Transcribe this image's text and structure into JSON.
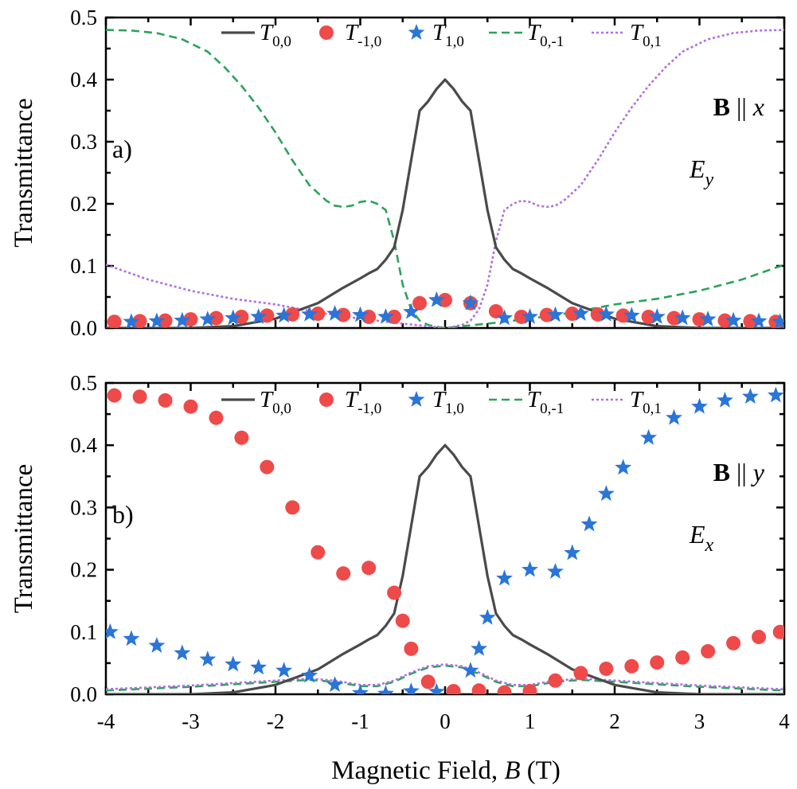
{
  "colors": {
    "T00": "#4a4a4a",
    "Tm10": "#ee4a4a",
    "T10": "#2a75d8",
    "T0m1": "#2aa35a",
    "T01": "#b16ee0"
  },
  "xlabel_main": "Magnetic Field, ",
  "xlabel_var": "B",
  "xlabel_unit": " (T)",
  "chart_data": [
    {
      "type": "line",
      "panel": "a",
      "panel_label": "a)",
      "field_label_bold": "B",
      "field_label_sep": " || ",
      "field_label_axis": "x",
      "pol_label_main": "E",
      "pol_label_sub": "y",
      "ylabel": "Transmittance",
      "xlabel": "Magnetic Field, B (T)",
      "xlim": [
        -4,
        4
      ],
      "ylim": [
        0,
        0.5
      ],
      "xticks": [
        "-4",
        "-3",
        "-2",
        "-1",
        "0",
        "1",
        "2",
        "3",
        "4"
      ],
      "yticks": [
        "0.0",
        "0.1",
        "0.2",
        "0.3",
        "0.4",
        "0.5"
      ],
      "legend": [
        {
          "key": "T00",
          "main": "T",
          "sub": "0,0",
          "style": "solid"
        },
        {
          "key": "Tm10",
          "main": "T",
          "sub": "-1,0",
          "style": "circle"
        },
        {
          "key": "T10",
          "main": "T",
          "sub": "1,0",
          "style": "star"
        },
        {
          "key": "T0m1",
          "main": "T",
          "sub": "0,-1",
          "style": "dash"
        },
        {
          "key": "T01",
          "main": "T",
          "sub": "0,1",
          "style": "dot"
        }
      ],
      "series": [
        {
          "key": "T00",
          "name": "T0,0",
          "style": "solid",
          "x": [
            -4.0,
            -3.5,
            -3.0,
            -2.5,
            -2.0,
            -1.5,
            -1.2,
            -1.0,
            -0.9,
            -0.8,
            -0.7,
            -0.6,
            -0.5,
            -0.4,
            -0.3,
            -0.2,
            -0.1,
            0.0,
            0.1,
            0.2,
            0.3,
            0.4,
            0.5,
            0.6,
            0.7,
            0.8,
            0.9,
            1.0,
            1.2,
            1.5,
            2.0,
            2.5,
            3.0,
            3.5,
            4.0
          ],
          "y": [
            0.0,
            0.0,
            0.0,
            0.003,
            0.015,
            0.04,
            0.065,
            0.08,
            0.088,
            0.095,
            0.11,
            0.13,
            0.19,
            0.27,
            0.35,
            0.365,
            0.385,
            0.4,
            0.385,
            0.365,
            0.35,
            0.27,
            0.19,
            0.13,
            0.11,
            0.095,
            0.088,
            0.08,
            0.065,
            0.04,
            0.015,
            0.003,
            0.0,
            0.0,
            0.0
          ]
        },
        {
          "key": "Tm10",
          "name": "T-1,0",
          "style": "circle",
          "x": [
            -3.9,
            -3.6,
            -3.3,
            -3.0,
            -2.7,
            -2.4,
            -2.1,
            -1.8,
            -1.5,
            -1.2,
            -0.9,
            -0.6,
            -0.3,
            0.0,
            0.3,
            0.6,
            0.9,
            1.2,
            1.5,
            1.8,
            2.1,
            2.4,
            2.7,
            3.0,
            3.3,
            3.6,
            3.9
          ],
          "y": [
            0.01,
            0.011,
            0.012,
            0.014,
            0.016,
            0.018,
            0.02,
            0.022,
            0.023,
            0.021,
            0.018,
            0.018,
            0.04,
            0.045,
            0.04,
            0.027,
            0.018,
            0.021,
            0.023,
            0.022,
            0.02,
            0.018,
            0.016,
            0.014,
            0.012,
            0.011,
            0.01
          ]
        },
        {
          "key": "T10",
          "name": "T1,0",
          "style": "star",
          "x": [
            -3.7,
            -3.4,
            -3.1,
            -2.8,
            -2.5,
            -2.2,
            -1.9,
            -1.6,
            -1.3,
            -1.0,
            -0.7,
            -0.4,
            -0.1,
            0.3,
            0.7,
            1.0,
            1.3,
            1.6,
            1.9,
            2.2,
            2.5,
            2.8,
            3.1,
            3.4,
            3.7,
            3.95
          ],
          "y": [
            0.01,
            0.011,
            0.012,
            0.014,
            0.016,
            0.018,
            0.02,
            0.022,
            0.023,
            0.021,
            0.018,
            0.026,
            0.045,
            0.04,
            0.016,
            0.018,
            0.021,
            0.023,
            0.022,
            0.02,
            0.018,
            0.016,
            0.014,
            0.012,
            0.011,
            0.01
          ]
        },
        {
          "key": "T0m1",
          "name": "T0,-1",
          "style": "dash",
          "x": [
            -4.0,
            -3.7,
            -3.4,
            -3.1,
            -2.8,
            -2.6,
            -2.4,
            -2.2,
            -2.0,
            -1.8,
            -1.6,
            -1.4,
            -1.3,
            -1.2,
            -1.1,
            -1.0,
            -0.9,
            -0.8,
            -0.7,
            -0.6,
            -0.5,
            -0.4,
            -0.3,
            -0.2,
            -0.1,
            0.0,
            0.2,
            0.5,
            1.0,
            1.5,
            2.0,
            2.5,
            3.0,
            3.5,
            4.0
          ],
          "y": [
            0.48,
            0.479,
            0.475,
            0.465,
            0.445,
            0.42,
            0.39,
            0.355,
            0.315,
            0.27,
            0.23,
            0.205,
            0.197,
            0.195,
            0.197,
            0.203,
            0.205,
            0.2,
            0.19,
            0.14,
            0.07,
            0.03,
            0.012,
            0.005,
            0.002,
            0.0,
            0.003,
            0.007,
            0.015,
            0.025,
            0.038,
            0.047,
            0.06,
            0.078,
            0.102
          ]
        },
        {
          "key": "T01",
          "name": "T0,1",
          "style": "dot",
          "x": [
            -4.0,
            -3.5,
            -3.0,
            -2.5,
            -2.0,
            -1.5,
            -1.0,
            -0.5,
            -0.2,
            0.0,
            0.1,
            0.2,
            0.3,
            0.4,
            0.5,
            0.6,
            0.7,
            0.8,
            0.9,
            1.0,
            1.1,
            1.2,
            1.3,
            1.4,
            1.6,
            1.8,
            2.0,
            2.2,
            2.4,
            2.6,
            2.8,
            3.1,
            3.4,
            3.7,
            4.0
          ],
          "y": [
            0.102,
            0.078,
            0.06,
            0.047,
            0.038,
            0.025,
            0.015,
            0.007,
            0.003,
            0.0,
            0.002,
            0.005,
            0.012,
            0.03,
            0.07,
            0.14,
            0.19,
            0.2,
            0.205,
            0.203,
            0.197,
            0.195,
            0.197,
            0.205,
            0.23,
            0.27,
            0.315,
            0.355,
            0.39,
            0.42,
            0.445,
            0.465,
            0.475,
            0.479,
            0.48
          ]
        }
      ]
    },
    {
      "type": "line",
      "panel": "b",
      "panel_label": "b)",
      "field_label_bold": "B",
      "field_label_sep": " || ",
      "field_label_axis": "y",
      "pol_label_main": "E",
      "pol_label_sub": "x",
      "ylabel": "Transmittance",
      "xlabel": "Magnetic Field, B (T)",
      "xlim": [
        -4,
        4
      ],
      "ylim": [
        0,
        0.5
      ],
      "xticks": [
        "-4",
        "-3",
        "-2",
        "-1",
        "0",
        "1",
        "2",
        "3",
        "4"
      ],
      "yticks": [
        "0.0",
        "0.1",
        "0.2",
        "0.3",
        "0.4",
        "0.5"
      ],
      "legend": [
        {
          "key": "T00",
          "main": "T",
          "sub": "0,0",
          "style": "solid"
        },
        {
          "key": "Tm10",
          "main": "T",
          "sub": "-1,0",
          "style": "circle"
        },
        {
          "key": "T10",
          "main": "T",
          "sub": "1,0",
          "style": "star"
        },
        {
          "key": "T0m1",
          "main": "T",
          "sub": "0,-1",
          "style": "dash"
        },
        {
          "key": "T01",
          "main": "T",
          "sub": "0,1",
          "style": "dot"
        }
      ],
      "series": [
        {
          "key": "T00",
          "name": "T0,0",
          "style": "solid",
          "x": [
            -4.0,
            -3.5,
            -3.0,
            -2.5,
            -2.0,
            -1.5,
            -1.2,
            -1.0,
            -0.9,
            -0.8,
            -0.7,
            -0.6,
            -0.5,
            -0.4,
            -0.3,
            -0.2,
            -0.1,
            0.0,
            0.1,
            0.2,
            0.3,
            0.4,
            0.5,
            0.6,
            0.7,
            0.8,
            0.9,
            1.0,
            1.2,
            1.5,
            2.0,
            2.5,
            3.0,
            3.5,
            4.0
          ],
          "y": [
            0.0,
            0.0,
            0.0,
            0.003,
            0.015,
            0.04,
            0.065,
            0.08,
            0.088,
            0.095,
            0.11,
            0.13,
            0.19,
            0.27,
            0.35,
            0.365,
            0.385,
            0.4,
            0.385,
            0.365,
            0.35,
            0.27,
            0.19,
            0.13,
            0.11,
            0.095,
            0.088,
            0.08,
            0.065,
            0.04,
            0.015,
            0.003,
            0.0,
            0.0,
            0.0
          ]
        },
        {
          "key": "Tm10",
          "name": "T-1,0",
          "style": "circle",
          "x": [
            -3.9,
            -3.6,
            -3.3,
            -3.0,
            -2.7,
            -2.4,
            -2.1,
            -1.8,
            -1.5,
            -1.2,
            -0.9,
            -0.6,
            -0.5,
            -0.4,
            -0.2,
            0.1,
            0.4,
            0.7,
            1.0,
            1.3,
            1.6,
            1.9,
            2.2,
            2.5,
            2.8,
            3.1,
            3.4,
            3.7,
            3.95
          ],
          "y": [
            0.48,
            0.478,
            0.472,
            0.462,
            0.444,
            0.412,
            0.365,
            0.3,
            0.228,
            0.194,
            0.203,
            0.163,
            0.118,
            0.073,
            0.02,
            0.005,
            0.006,
            0.003,
            0.005,
            0.022,
            0.034,
            0.041,
            0.045,
            0.051,
            0.059,
            0.069,
            0.082,
            0.092,
            0.1
          ]
        },
        {
          "key": "T10",
          "name": "T1,0",
          "style": "star",
          "x": [
            -3.95,
            -3.7,
            -3.4,
            -3.1,
            -2.8,
            -2.5,
            -2.2,
            -1.9,
            -1.6,
            -1.3,
            -1.0,
            -0.7,
            -0.4,
            -0.1,
            0.3,
            0.4,
            0.5,
            0.7,
            1.0,
            1.3,
            1.5,
            1.7,
            1.9,
            2.1,
            2.4,
            2.7,
            3.0,
            3.3,
            3.6,
            3.9
          ],
          "y": [
            0.1,
            0.089,
            0.078,
            0.066,
            0.056,
            0.048,
            0.043,
            0.038,
            0.03,
            0.015,
            0.002,
            0.001,
            0.005,
            0.004,
            0.038,
            0.073,
            0.123,
            0.186,
            0.2,
            0.197,
            0.227,
            0.273,
            0.322,
            0.364,
            0.412,
            0.444,
            0.462,
            0.472,
            0.478,
            0.48
          ]
        },
        {
          "key": "T0m1",
          "name": "T0,-1",
          "style": "dash",
          "x": [
            -4.0,
            -3.5,
            -3.0,
            -2.5,
            -2.0,
            -1.6,
            -1.3,
            -1.0,
            -0.8,
            -0.6,
            -0.4,
            -0.2,
            0.0,
            0.2,
            0.4,
            0.6,
            0.8,
            1.0,
            1.3,
            1.6,
            2.0,
            2.5,
            3.0,
            3.5,
            4.0
          ],
          "y": [
            0.006,
            0.009,
            0.012,
            0.016,
            0.02,
            0.023,
            0.02,
            0.013,
            0.013,
            0.02,
            0.033,
            0.043,
            0.046,
            0.043,
            0.033,
            0.02,
            0.013,
            0.013,
            0.02,
            0.023,
            0.02,
            0.016,
            0.012,
            0.009,
            0.006
          ]
        },
        {
          "key": "T01",
          "name": "T0,1",
          "style": "dot",
          "x": [
            -4.0,
            -3.5,
            -3.0,
            -2.5,
            -2.0,
            -1.6,
            -1.3,
            -1.0,
            -0.8,
            -0.6,
            -0.4,
            -0.2,
            0.0,
            0.2,
            0.4,
            0.6,
            0.8,
            1.0,
            1.3,
            1.6,
            2.0,
            2.5,
            3.0,
            3.5,
            4.0
          ],
          "y": [
            0.008,
            0.011,
            0.014,
            0.018,
            0.022,
            0.025,
            0.022,
            0.015,
            0.015,
            0.022,
            0.035,
            0.045,
            0.048,
            0.045,
            0.035,
            0.022,
            0.015,
            0.015,
            0.022,
            0.025,
            0.022,
            0.018,
            0.014,
            0.011,
            0.008
          ]
        }
      ]
    }
  ]
}
